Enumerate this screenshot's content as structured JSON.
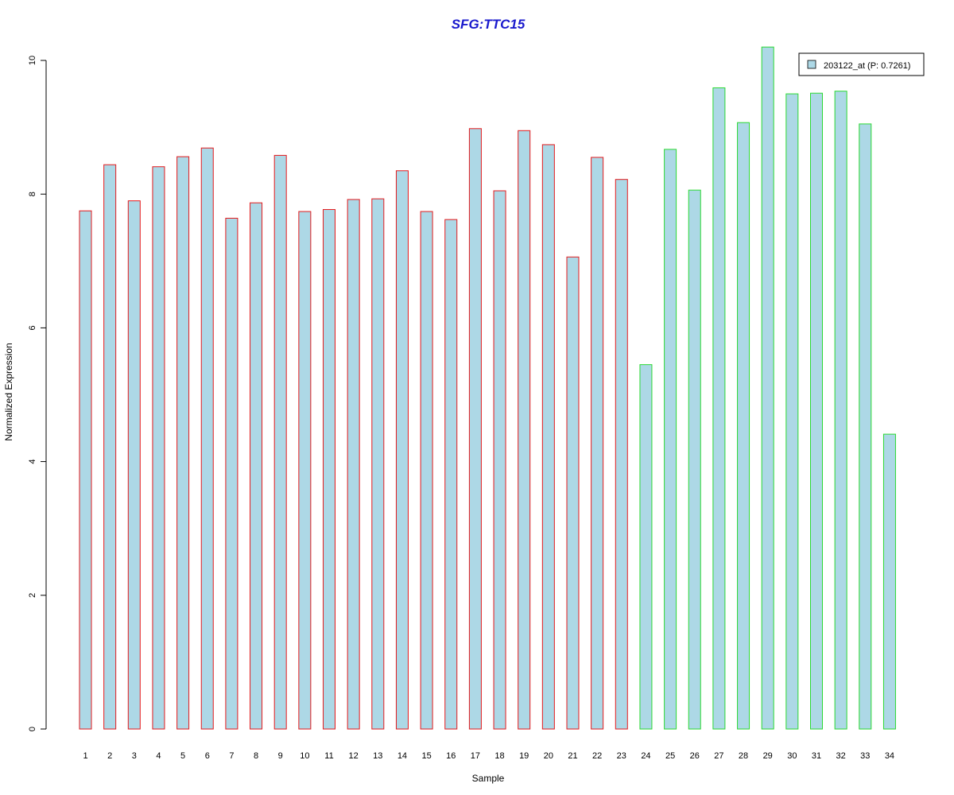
{
  "chart_data": {
    "type": "bar",
    "title": "SFG:TTC15",
    "xlabel": "Sample",
    "ylabel": "Normalized Expression",
    "categories": [
      "1",
      "2",
      "3",
      "4",
      "5",
      "6",
      "7",
      "8",
      "9",
      "10",
      "11",
      "12",
      "13",
      "14",
      "15",
      "16",
      "17",
      "18",
      "19",
      "20",
      "21",
      "22",
      "23",
      "24",
      "25",
      "26",
      "27",
      "28",
      "29",
      "30",
      "31",
      "32",
      "33",
      "34"
    ],
    "series": [
      {
        "name": "203122_at (P: 0.7261)",
        "values": [
          7.75,
          8.44,
          7.9,
          8.41,
          8.56,
          8.69,
          7.64,
          7.87,
          8.58,
          7.74,
          7.77,
          7.92,
          7.93,
          8.35,
          7.74,
          7.62,
          8.98,
          8.05,
          8.95,
          8.74,
          7.06,
          8.55,
          8.22,
          5.45,
          8.67,
          8.06,
          9.59,
          9.07,
          10.2,
          9.5,
          9.51,
          9.54,
          9.05,
          4.41
        ]
      }
    ],
    "groups": [
      {
        "from": 1,
        "to": 23,
        "border_color": "#e41a1c"
      },
      {
        "from": 24,
        "to": 34,
        "border_color": "#2bd932"
      }
    ],
    "bar_fill": "#add8e6",
    "title_color": "#1a1acd",
    "yticks": [
      "0",
      "2",
      "4",
      "6",
      "8",
      "10"
    ],
    "ylim": [
      0,
      10.2
    ],
    "grid": false,
    "legend_position": "top-right"
  }
}
